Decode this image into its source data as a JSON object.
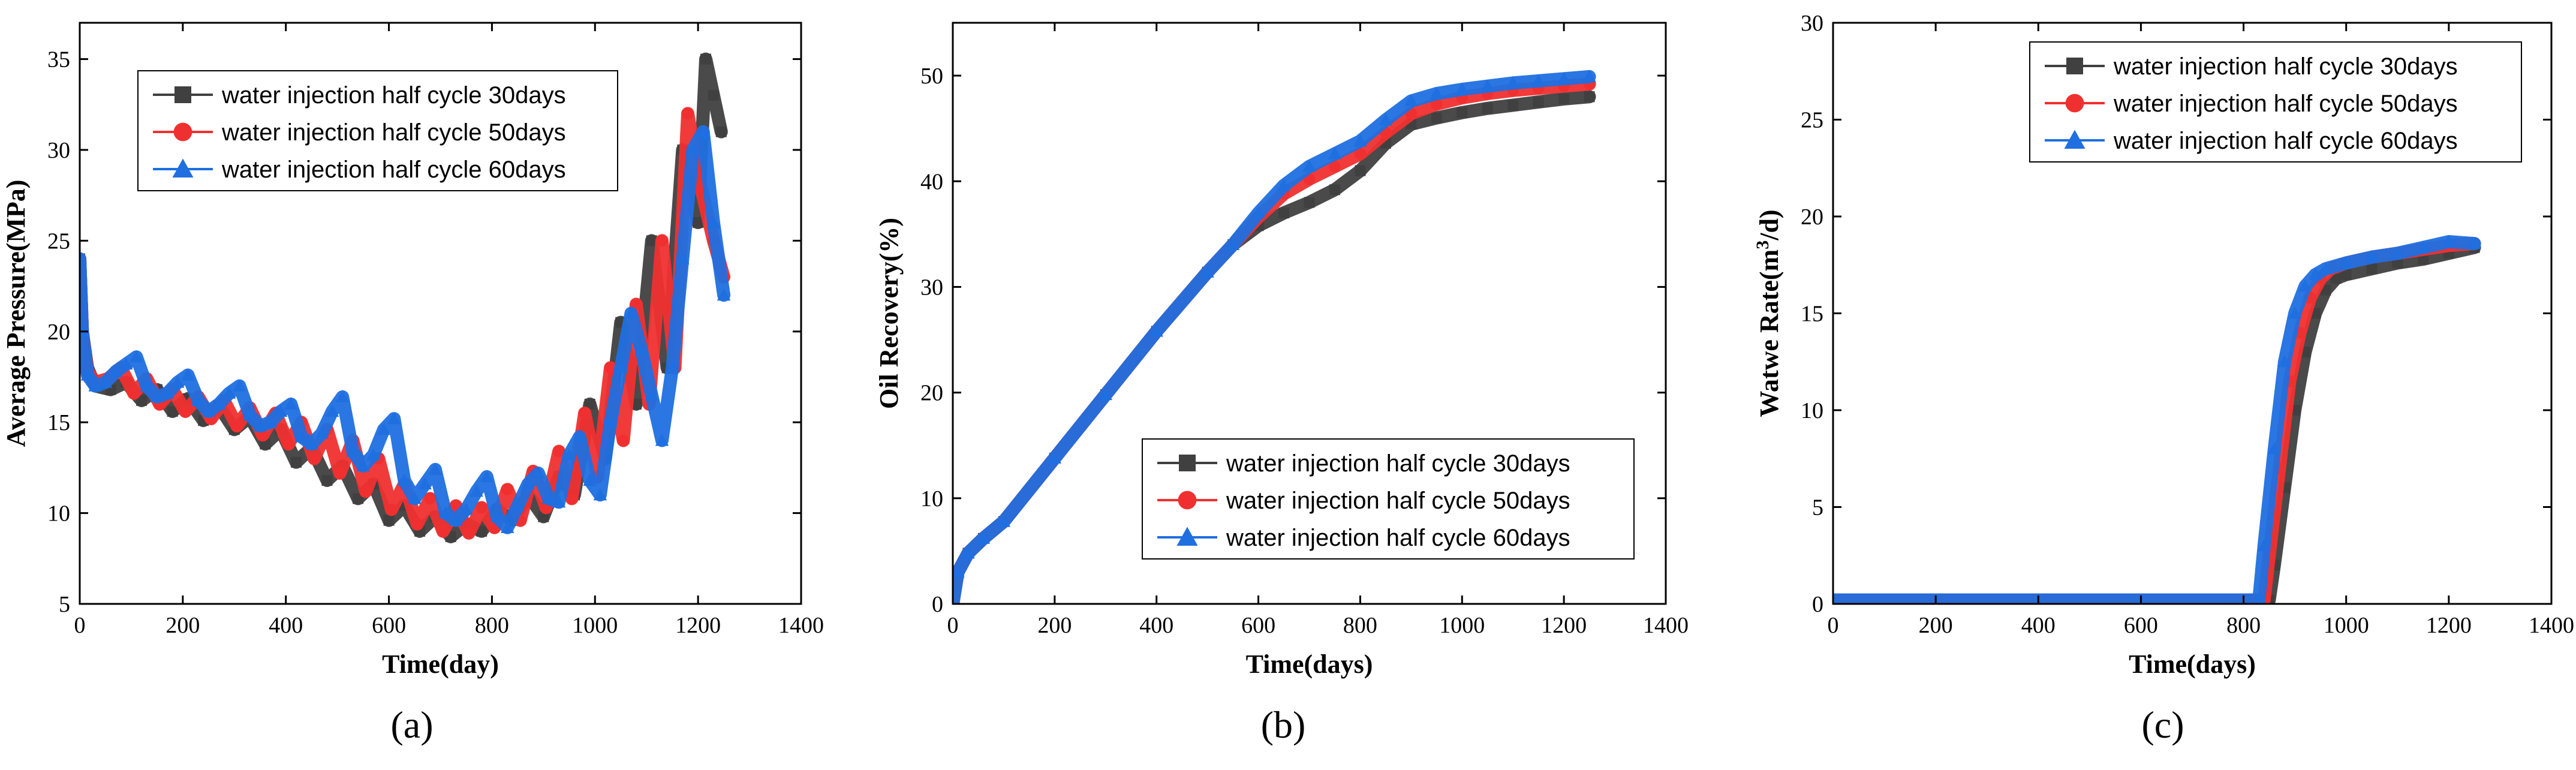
{
  "colors": {
    "s30": "#404040",
    "s50": "#f03030",
    "s60": "#1f6fe0"
  },
  "chart_data": [
    {
      "type": "line",
      "panel": "(a)",
      "xlabel": "Time(day)",
      "ylabel": "Average Pressure(MPa)",
      "xlim": [
        0,
        1400
      ],
      "ylim": [
        5,
        37
      ],
      "xticks": [
        0,
        200,
        400,
        600,
        800,
        1000,
        1200,
        1400
      ],
      "yticks": [
        5,
        10,
        15,
        20,
        25,
        30,
        35
      ],
      "legend_position": "top-center",
      "series": [
        {
          "name": "water injection half cycle 30days",
          "marker": "square",
          "x": [
            0,
            5,
            15,
            30,
            60,
            90,
            120,
            150,
            180,
            210,
            240,
            270,
            300,
            330,
            360,
            390,
            420,
            450,
            480,
            510,
            540,
            570,
            600,
            630,
            660,
            690,
            720,
            750,
            780,
            810,
            840,
            870,
            900,
            930,
            960,
            990,
            1020,
            1050,
            1080,
            1110,
            1140,
            1170,
            1200,
            1215,
            1230,
            1245
          ],
          "y": [
            24,
            20,
            18,
            17,
            16.8,
            17.2,
            16.2,
            16.8,
            15.6,
            16.3,
            15.1,
            15.9,
            14.6,
            15.3,
            13.8,
            14.6,
            12.8,
            13.6,
            11.8,
            12.6,
            10.8,
            11.6,
            9.6,
            10.4,
            9.0,
            9.8,
            8.7,
            9.4,
            9.0,
            10.2,
            9.6,
            11.0,
            9.8,
            12.0,
            11.0,
            16.0,
            13.0,
            20.5,
            16.0,
            25.0,
            18.0,
            30.0,
            26.0,
            35.0,
            33.0,
            31.0
          ]
        },
        {
          "name": "water injection half cycle 50days",
          "marker": "circle",
          "x": [
            0,
            5,
            15,
            30,
            55,
            80,
            105,
            130,
            155,
            180,
            205,
            230,
            255,
            280,
            305,
            330,
            355,
            380,
            405,
            430,
            455,
            480,
            505,
            530,
            555,
            580,
            605,
            630,
            655,
            680,
            705,
            730,
            755,
            780,
            805,
            830,
            855,
            880,
            905,
            930,
            955,
            980,
            1005,
            1030,
            1055,
            1080,
            1105,
            1130,
            1155,
            1180,
            1205,
            1230,
            1250
          ],
          "y": [
            24,
            20,
            17.8,
            17.2,
            17.4,
            18.0,
            16.6,
            17.4,
            16.0,
            16.8,
            15.6,
            16.4,
            15.2,
            16.2,
            14.8,
            15.8,
            14.3,
            15.5,
            13.8,
            15.0,
            13.0,
            14.6,
            12.2,
            14.0,
            11.2,
            13.0,
            10.2,
            11.6,
            9.4,
            10.8,
            9.0,
            10.4,
            8.9,
            10.3,
            9.2,
            11.3,
            9.6,
            12.3,
            10.3,
            13.4,
            10.8,
            15.5,
            12.0,
            18.0,
            14.0,
            21.5,
            16.0,
            25.0,
            18.0,
            32.0,
            28.0,
            25.0,
            23.0
          ]
        },
        {
          "name": "water injection half cycle 60days",
          "marker": "triangle",
          "x": [
            0,
            5,
            15,
            30,
            50,
            70,
            90,
            110,
            130,
            150,
            170,
            190,
            210,
            230,
            250,
            270,
            290,
            310,
            330,
            350,
            370,
            390,
            410,
            430,
            450,
            470,
            490,
            510,
            530,
            550,
            570,
            590,
            610,
            630,
            650,
            670,
            690,
            710,
            730,
            750,
            770,
            790,
            810,
            830,
            850,
            870,
            890,
            910,
            930,
            950,
            970,
            990,
            1010,
            1030,
            1050,
            1070,
            1090,
            1110,
            1130,
            1150,
            1170,
            1190,
            1210,
            1230,
            1250
          ],
          "y": [
            24,
            20,
            17.6,
            17.0,
            17.2,
            17.8,
            18.2,
            18.6,
            17.0,
            16.4,
            16.6,
            17.2,
            17.6,
            16.2,
            15.6,
            16.0,
            16.6,
            17.0,
            15.4,
            14.8,
            15.0,
            15.6,
            16.0,
            14.2,
            13.8,
            14.4,
            15.6,
            16.4,
            13.4,
            12.6,
            13.2,
            14.6,
            15.2,
            11.8,
            10.8,
            11.6,
            12.4,
            10.0,
            9.6,
            10.2,
            11.2,
            12.0,
            9.8,
            9.2,
            10.4,
            11.6,
            12.2,
            10.8,
            10.6,
            13.2,
            14.2,
            11.8,
            11.0,
            15.0,
            18.0,
            21.0,
            19.0,
            16.5,
            14.0,
            18.0,
            24.0,
            30.0,
            31.0,
            26.0,
            22.0
          ]
        }
      ]
    },
    {
      "type": "line",
      "panel": "(b)",
      "xlabel": "Time(days)",
      "ylabel": "Oil Recovery(%)",
      "xlim": [
        0,
        1400
      ],
      "ylim": [
        0,
        55
      ],
      "xticks": [
        0,
        200,
        400,
        600,
        800,
        1000,
        1200,
        1400
      ],
      "yticks": [
        0,
        10,
        20,
        30,
        40,
        50
      ],
      "legend_position": "bottom-right",
      "series": [
        {
          "name": "water injection half cycle 30days",
          "marker": "square",
          "x": [
            0,
            10,
            30,
            60,
            100,
            200,
            300,
            400,
            500,
            550,
            600,
            650,
            700,
            750,
            800,
            850,
            900,
            950,
            1000,
            1050,
            1100,
            1150,
            1200,
            1250
          ],
          "y": [
            0,
            3,
            4.8,
            6.2,
            7.8,
            13.8,
            19.8,
            25.8,
            31.4,
            34.0,
            35.8,
            37.0,
            38.0,
            39.2,
            41.0,
            43.6,
            45.4,
            46.0,
            46.5,
            46.9,
            47.2,
            47.5,
            47.8,
            48.0
          ]
        },
        {
          "name": "water injection half cycle 50days",
          "marker": "circle",
          "x": [
            0,
            10,
            30,
            60,
            100,
            200,
            300,
            400,
            500,
            550,
            600,
            650,
            700,
            750,
            800,
            850,
            900,
            950,
            1000,
            1050,
            1100,
            1150,
            1200,
            1250
          ],
          "y": [
            0,
            3,
            4.8,
            6.2,
            7.8,
            13.8,
            19.8,
            25.8,
            31.4,
            34.0,
            36.6,
            38.8,
            40.2,
            41.4,
            42.6,
            44.6,
            46.4,
            47.3,
            47.9,
            48.3,
            48.6,
            48.8,
            49.0,
            49.2
          ]
        },
        {
          "name": "water injection half cycle 60days",
          "marker": "triangle",
          "x": [
            0,
            10,
            30,
            60,
            100,
            200,
            300,
            400,
            500,
            550,
            600,
            650,
            700,
            750,
            800,
            850,
            900,
            950,
            1000,
            1050,
            1100,
            1150,
            1200,
            1250
          ],
          "y": [
            0,
            3,
            4.8,
            6.2,
            7.8,
            13.8,
            19.8,
            25.8,
            31.4,
            34.0,
            37.0,
            39.6,
            41.4,
            42.6,
            43.8,
            45.8,
            47.6,
            48.3,
            48.7,
            49.0,
            49.3,
            49.5,
            49.7,
            49.9
          ]
        }
      ]
    },
    {
      "type": "line",
      "panel": "(c)",
      "xlabel": "Time(days)",
      "ylabel": "Watwe Rate(m³/d)",
      "ylabel_parts": [
        "Watwe Rate(m",
        "3",
        "/d)"
      ],
      "xlim": [
        0,
        1400
      ],
      "ylim": [
        0,
        30
      ],
      "xticks": [
        0,
        200,
        400,
        600,
        800,
        1000,
        1200,
        1400
      ],
      "yticks": [
        0,
        5,
        10,
        15,
        20,
        25,
        30
      ],
      "legend_position": "top-right",
      "series": [
        {
          "name": "water injection half cycle 30days",
          "marker": "square",
          "x": [
            0,
            850,
            860,
            880,
            900,
            920,
            940,
            960,
            980,
            1000,
            1050,
            1100,
            1150,
            1200,
            1250
          ],
          "y": [
            0.2,
            0.2,
            2.0,
            6.0,
            10.0,
            13.0,
            15.0,
            16.2,
            16.8,
            17.0,
            17.3,
            17.6,
            17.8,
            18.1,
            18.4
          ]
        },
        {
          "name": "water injection half cycle 50days",
          "marker": "circle",
          "x": [
            0,
            840,
            850,
            870,
            890,
            910,
            930,
            950,
            970,
            1000,
            1050,
            1100,
            1150,
            1200,
            1250
          ],
          "y": [
            0.2,
            0.2,
            2.5,
            7.0,
            11.5,
            14.0,
            15.8,
            16.8,
            17.3,
            17.6,
            17.9,
            18.1,
            18.3,
            18.5,
            18.6
          ]
        },
        {
          "name": "water injection half cycle 60days",
          "marker": "triangle",
          "x": [
            0,
            830,
            840,
            860,
            880,
            900,
            920,
            940,
            960,
            1000,
            1050,
            1100,
            1150,
            1200,
            1250
          ],
          "y": [
            0.2,
            0.2,
            3.0,
            8.0,
            12.5,
            15.0,
            16.4,
            17.0,
            17.3,
            17.6,
            17.9,
            18.1,
            18.4,
            18.7,
            18.6
          ]
        }
      ]
    }
  ]
}
